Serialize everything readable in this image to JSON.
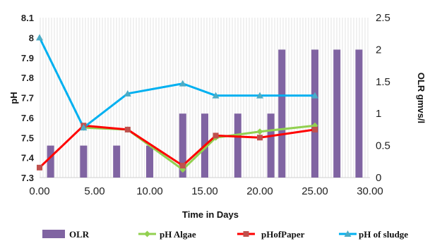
{
  "chart_data": {
    "type": "bar",
    "title": "",
    "xlabel": "Time in Days",
    "ylabel": "pH",
    "y2label": "OLR gmvs/l",
    "xlim": [
      0,
      30
    ],
    "ylim": [
      7.3,
      8.1
    ],
    "y2lim": [
      0,
      2.5
    ],
    "x_ticks": [
      0,
      5,
      10,
      15,
      20,
      25,
      30
    ],
    "x_tick_labels": [
      "0.00",
      "5.00",
      "10.00",
      "15.00",
      "20.00",
      "25.00",
      "30.00"
    ],
    "y_ticks": [
      7.3,
      7.4,
      7.5,
      7.6,
      7.7,
      7.8,
      7.9,
      8,
      8.1
    ],
    "y_tick_labels": [
      "7.3",
      "7.4",
      "7.5",
      "7.6",
      "7.7",
      "7.8",
      "7.9",
      "8",
      "8.1"
    ],
    "y2_ticks": [
      0,
      0.5,
      1,
      1.5,
      2,
      2.5
    ],
    "y2_tick_labels": [
      "0",
      "0.5",
      "1",
      "1.5",
      "2",
      "2.5"
    ],
    "grid": "vertical hatched background",
    "legend_position": "bottom",
    "bars": {
      "name": "OLR",
      "axis": "right",
      "color": "#8064A2",
      "x": [
        1,
        4,
        7,
        10,
        13,
        15,
        18,
        21,
        22,
        25,
        27,
        29
      ],
      "values": [
        0.5,
        0.5,
        0.5,
        0.5,
        1,
        1,
        1,
        1,
        2,
        2,
        2,
        2
      ]
    },
    "series": [
      {
        "name": "pH Algae",
        "color": "#92D050",
        "marker": "diamond",
        "x": [
          4,
          8,
          13,
          16,
          20,
          25
        ],
        "values": [
          7.55,
          7.54,
          7.34,
          7.5,
          7.53,
          7.56
        ]
      },
      {
        "name": "pHofPaper",
        "color": "#FF0000",
        "marker_color": "#C0504D",
        "marker": "square",
        "x": [
          0,
          4,
          8,
          13,
          16,
          20,
          25
        ],
        "values": [
          7.35,
          7.56,
          7.54,
          7.36,
          7.51,
          7.5,
          7.54
        ]
      },
      {
        "name": "pH of sludge",
        "color": "#00B0F0",
        "marker_color": "#4BACC6",
        "marker": "triangle",
        "x": [
          0,
          4,
          8,
          13,
          16,
          20,
          25
        ],
        "values": [
          8.0,
          7.55,
          7.72,
          7.77,
          7.71,
          7.71,
          7.71
        ]
      }
    ]
  }
}
